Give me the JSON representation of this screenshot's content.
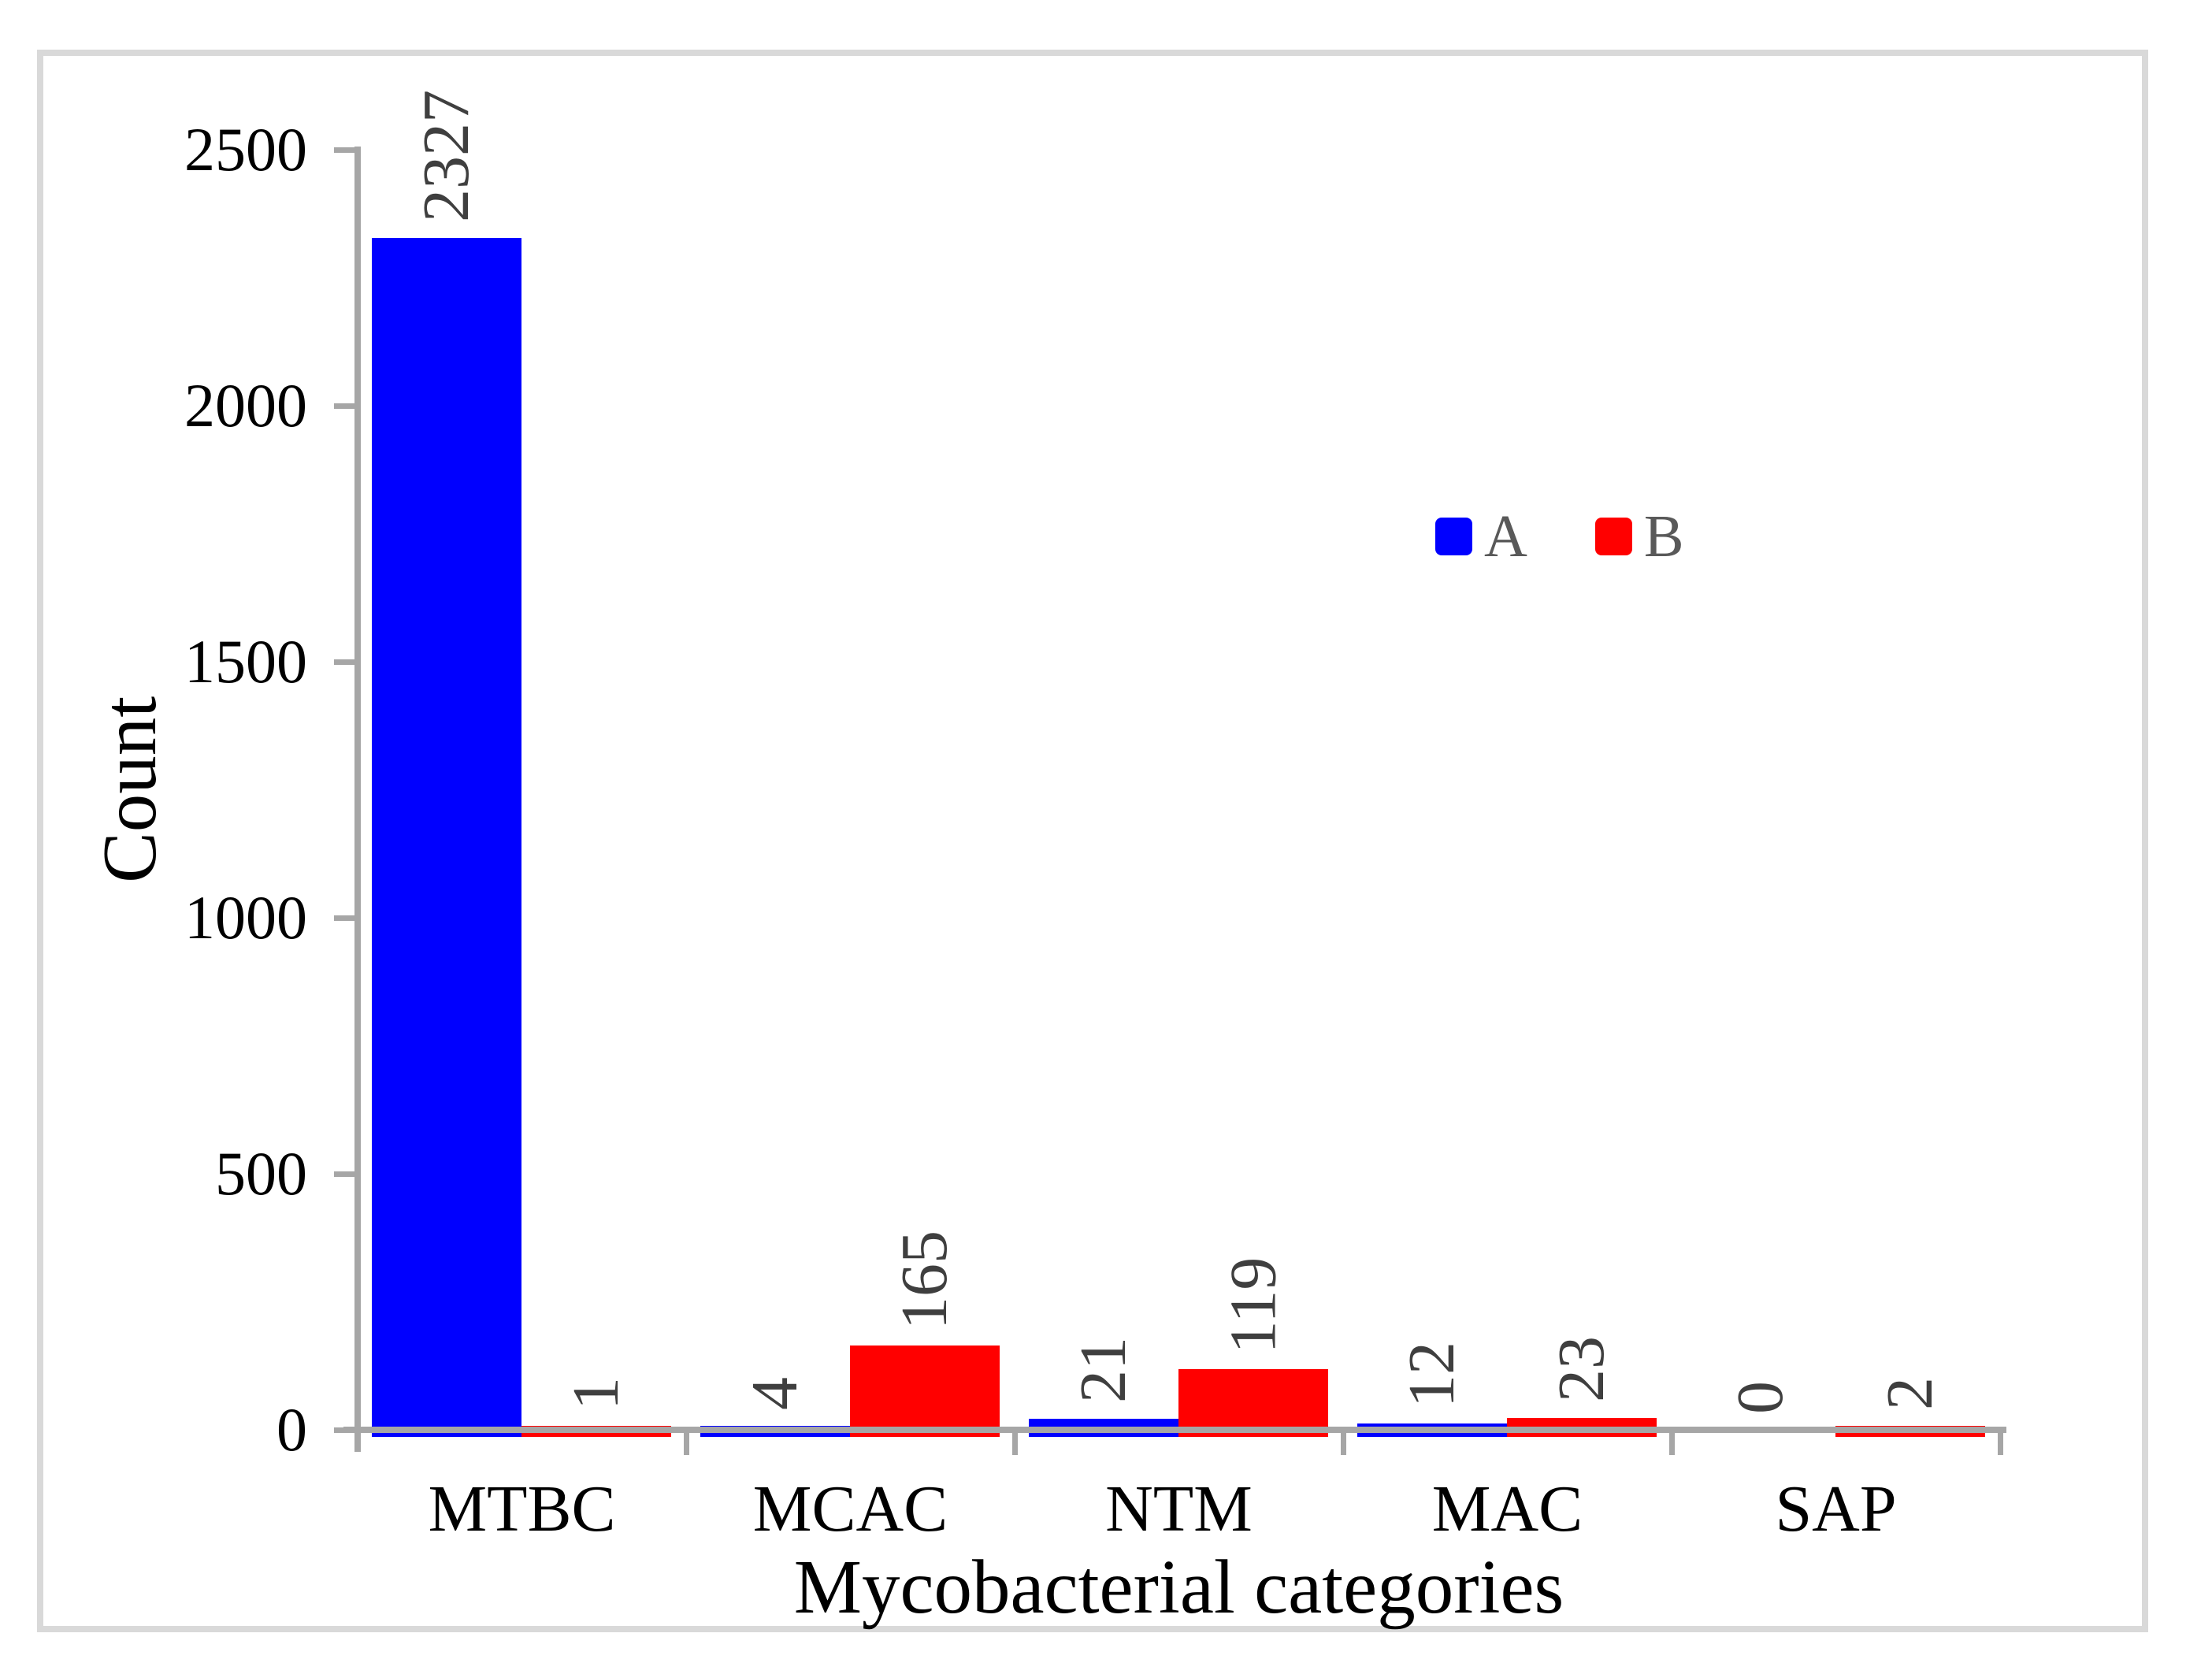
{
  "chart_data": {
    "type": "bar",
    "title": "",
    "xlabel": "Mycobacterial categories",
    "ylabel": "Count",
    "categories": [
      "MTBC",
      "MCAC",
      "NTM",
      "MAC",
      "SAP"
    ],
    "series": [
      {
        "name": "A",
        "color": "#0000ff",
        "values": [
          2327,
          4,
          21,
          12,
          0
        ]
      },
      {
        "name": "B",
        "color": "#ff0000",
        "values": [
          1,
          165,
          119,
          23,
          2
        ]
      }
    ],
    "data_labels": {
      "A": [
        "2327",
        "4",
        "21",
        "12",
        "0"
      ],
      "B": [
        "1",
        "165",
        "119",
        "23",
        "2"
      ]
    },
    "ylim": [
      0,
      2500
    ],
    "yticks": [
      "0",
      "500",
      "1000",
      "1500",
      "2000",
      "2500"
    ],
    "grid": false,
    "legend_position": "upper right area of plot",
    "data_label_rotation_deg": -90,
    "bar_gap_within_category": 0
  },
  "colors": {
    "series_a": "#0000ff",
    "series_b": "#ff0000",
    "axis": "#a6a6a6",
    "frame": "#d9d9d9",
    "tick_label_text": "#000000",
    "axis_title_text": "#000000",
    "data_label_text": "#3f3f3f",
    "legend_text": "#595959",
    "background": "#ffffff"
  }
}
